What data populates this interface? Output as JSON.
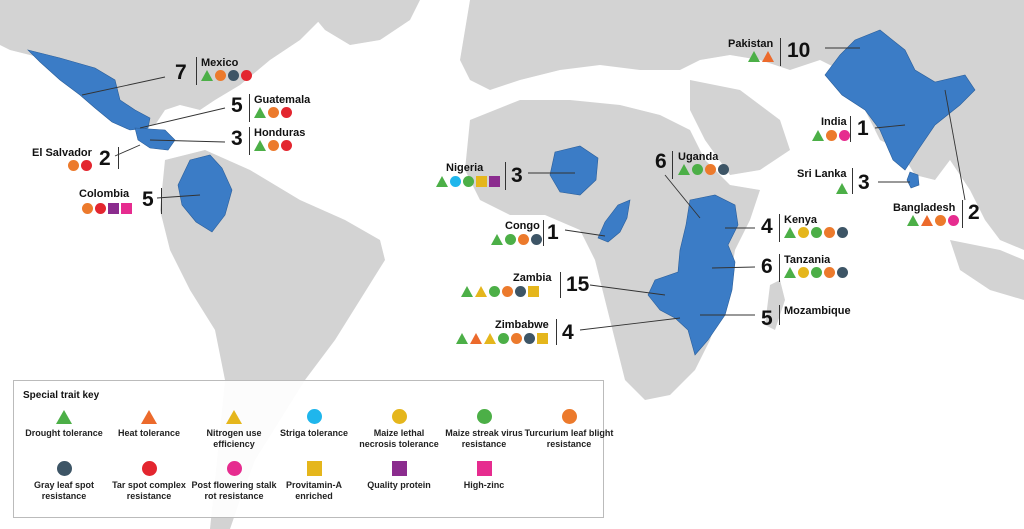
{
  "colors": {
    "land": "#d3d3d3",
    "highlight": "#3b7cc6",
    "ocean": "#ffffff",
    "drought": "#4caf47",
    "heat": "#ec6a2c",
    "nitrogen": "#e5b61c",
    "striga": "#1fb6ec",
    "mln": "#e5b61c",
    "msv": "#4caf47",
    "tlb": "#ec7a2c",
    "gls": "#3d5566",
    "tarspot": "#e3262f",
    "pfsr": "#e62c8f",
    "provitamin": "#e5b61c",
    "quality": "#8b2c8e",
    "highzinc": "#e62c8f"
  },
  "countries": [
    {
      "key": "mexico",
      "name": "Mexico",
      "count": "7",
      "traits": [
        "drought",
        "tlb",
        "gls",
        "tarspot"
      ]
    },
    {
      "key": "guatemala",
      "name": "Guatemala",
      "count": "5",
      "traits": [
        "drought",
        "tlb",
        "tarspot"
      ]
    },
    {
      "key": "honduras",
      "name": "Honduras",
      "count": "3",
      "traits": [
        "drought",
        "tlb",
        "tarspot"
      ]
    },
    {
      "key": "elsalvador",
      "name": "El Salvador",
      "count": "2",
      "traits": [
        "tlb",
        "tarspot"
      ]
    },
    {
      "key": "colombia",
      "name": "Colombia",
      "count": "5",
      "traits": [
        "tlb",
        "tarspot",
        "quality",
        "highzinc"
      ]
    },
    {
      "key": "nigeria",
      "name": "Nigeria",
      "count": "3",
      "traits": [
        "drought",
        "striga",
        "msv",
        "provitamin",
        "quality"
      ]
    },
    {
      "key": "congo",
      "name": "Congo",
      "count": "1",
      "traits": [
        "drought",
        "msv",
        "tlb",
        "gls"
      ]
    },
    {
      "key": "zambia",
      "name": "Zambia",
      "count": "15",
      "traits": [
        "drought",
        "nitrogen",
        "msv",
        "tlb",
        "gls",
        "provitamin"
      ]
    },
    {
      "key": "zimbabwe",
      "name": "Zimbabwe",
      "count": "4",
      "traits": [
        "drought",
        "heat",
        "nitrogen",
        "msv",
        "tlb",
        "gls",
        "provitamin"
      ]
    },
    {
      "key": "uganda",
      "name": "Uganda",
      "count": "6",
      "traits": [
        "drought",
        "msv",
        "tlb",
        "gls"
      ]
    },
    {
      "key": "kenya",
      "name": "Kenya",
      "count": "4",
      "traits": [
        "drought",
        "mln",
        "msv",
        "tlb",
        "gls"
      ]
    },
    {
      "key": "tanzania",
      "name": "Tanzania",
      "count": "6",
      "traits": [
        "drought",
        "mln",
        "msv",
        "tlb",
        "gls"
      ]
    },
    {
      "key": "mozambique",
      "name": "Mozambique",
      "count": "5",
      "traits": []
    },
    {
      "key": "pakistan",
      "name": "Pakistan",
      "count": "10",
      "traits": [
        "drought",
        "heat"
      ]
    },
    {
      "key": "india",
      "name": "India",
      "count": "1",
      "traits": [
        "drought",
        "tlb",
        "pfsr"
      ]
    },
    {
      "key": "srilanka",
      "name": "Sri Lanka",
      "count": "3",
      "traits": [
        "drought"
      ]
    },
    {
      "key": "bangladesh",
      "name": "Bangladesh",
      "count": "2",
      "traits": [
        "drought",
        "heat",
        "tlb",
        "pfsr"
      ]
    }
  ],
  "legend": {
    "title": "Special trait key",
    "items": [
      {
        "key": "drought",
        "shape": "triangle",
        "label": "Drought tolerance"
      },
      {
        "key": "heat",
        "shape": "triangle",
        "label": "Heat tolerance"
      },
      {
        "key": "nitrogen",
        "shape": "triangle",
        "label": "Nitrogen use efficiency"
      },
      {
        "key": "striga",
        "shape": "circle",
        "label": "Striga tolerance"
      },
      {
        "key": "mln",
        "shape": "circle",
        "label": "Maize lethal necrosis tolerance"
      },
      {
        "key": "msv",
        "shape": "circle",
        "label": "Maize streak virus resistance"
      },
      {
        "key": "tlb",
        "shape": "circle",
        "label": "Turcurium leaf blight resistance"
      },
      {
        "key": "gls",
        "shape": "circle",
        "label": "Gray leaf spot resistance"
      },
      {
        "key": "tarspot",
        "shape": "circle",
        "label": "Tar spot complex resistance"
      },
      {
        "key": "pfsr",
        "shape": "circle",
        "label": "Post flowering stalk rot resistance"
      },
      {
        "key": "provitamin",
        "shape": "square",
        "label": "Provitamin-A enriched"
      },
      {
        "key": "quality",
        "shape": "square",
        "label": "Quality protein"
      },
      {
        "key": "highzinc",
        "shape": "square",
        "label": "High-zinc"
      }
    ]
  }
}
